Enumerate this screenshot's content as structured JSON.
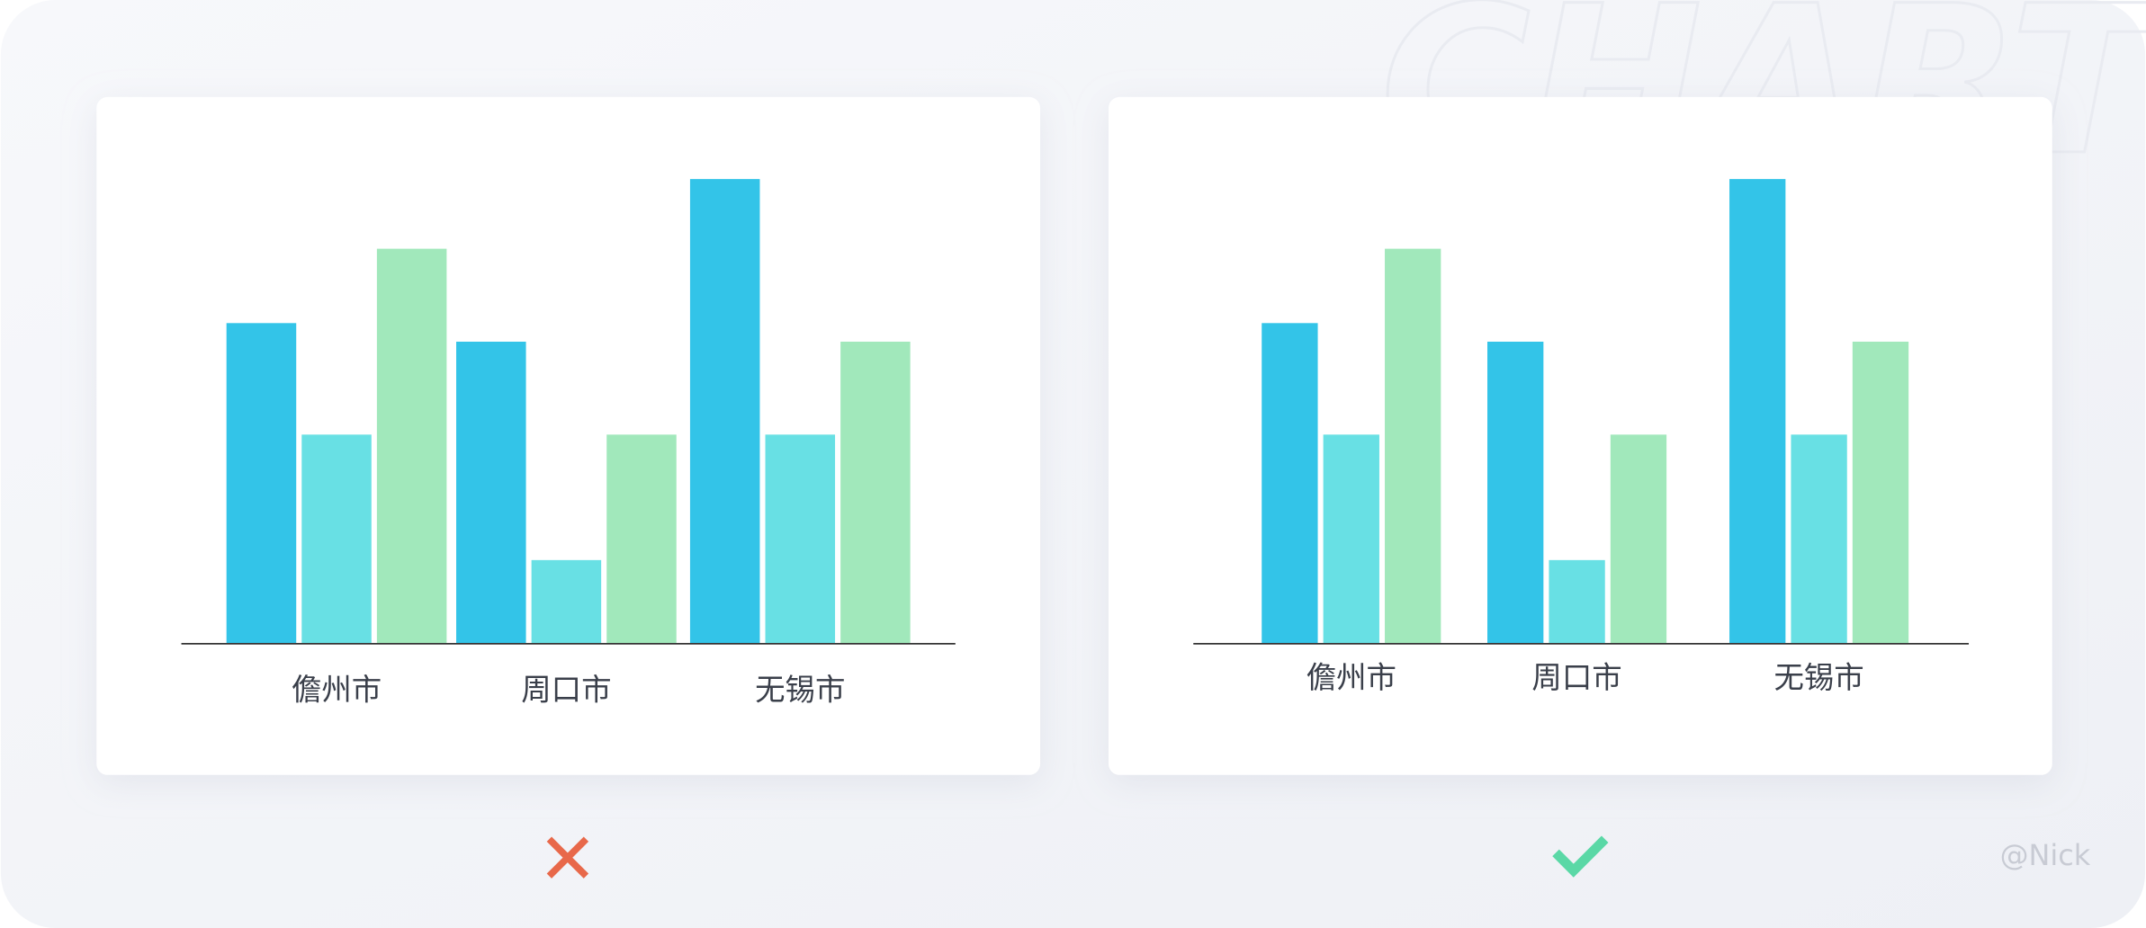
{
  "chart_data": [
    {
      "type": "bar",
      "categories": [
        "儋州市",
        "周口市",
        "无锡市"
      ],
      "series": [
        {
          "color": "#33c4e8",
          "values": [
            69,
            65,
            100
          ]
        },
        {
          "color": "#68e0e4",
          "values": [
            45,
            18,
            45
          ]
        },
        {
          "color": "#a1e8bb",
          "values": [
            85,
            45,
            65
          ]
        }
      ]
    },
    {
      "type": "bar",
      "categories": [
        "儋州市",
        "周口市",
        "无锡市"
      ],
      "series": [
        {
          "color": "#33c4e8",
          "values": [
            69,
            65,
            100
          ]
        },
        {
          "color": "#68e0e4",
          "values": [
            45,
            18,
            45
          ]
        },
        {
          "color": "#a1e8bb",
          "values": [
            85,
            45,
            65
          ]
        }
      ]
    }
  ],
  "watermark": "CHART",
  "credit": "@Nick"
}
